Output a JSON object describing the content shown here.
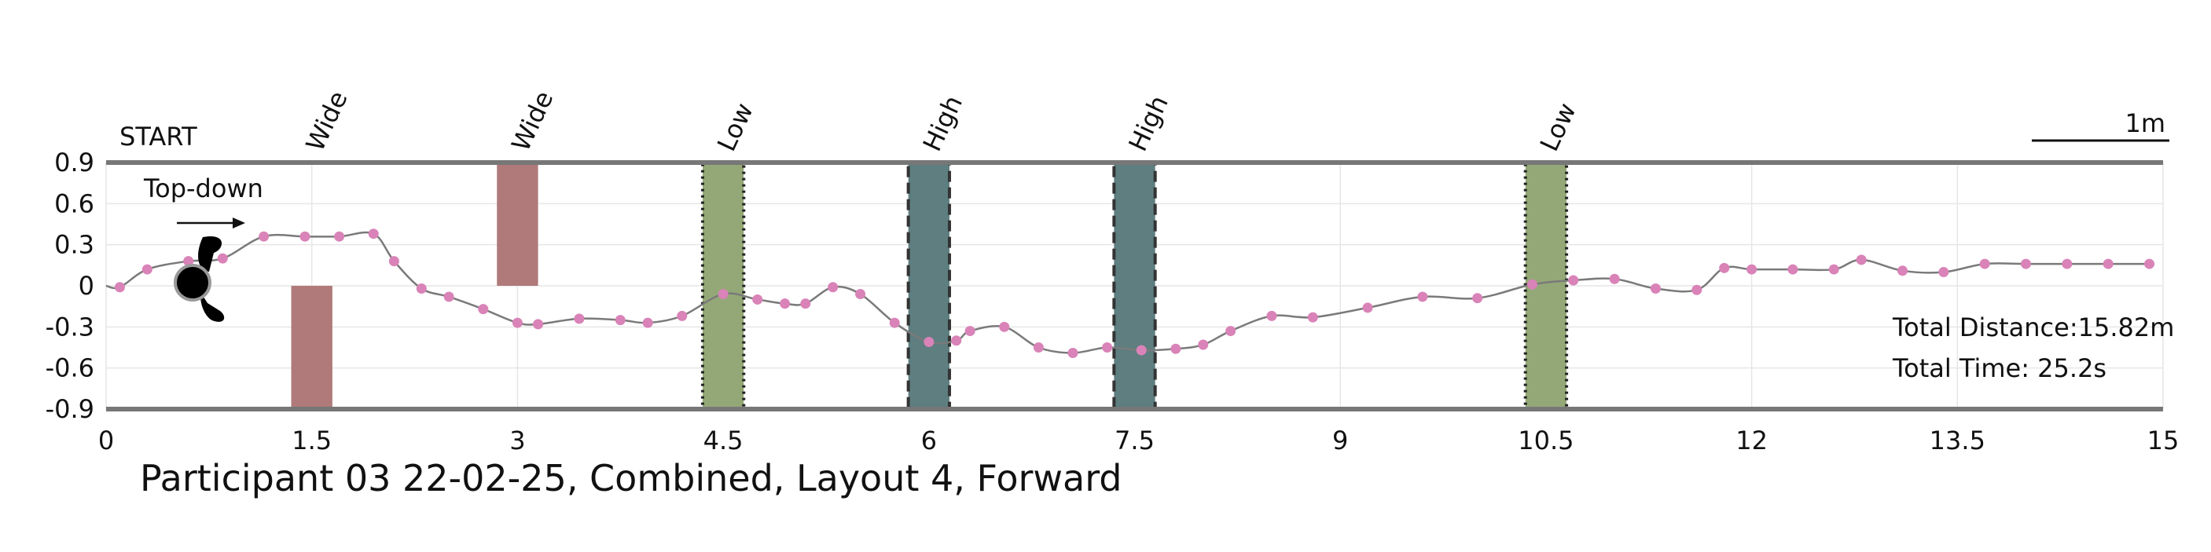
{
  "chart_data": {
    "type": "scatter",
    "title": "Participant 03 22-02-25, Combined, Layout 4, Forward",
    "start_label": "START",
    "topdown_label": "Top-down",
    "scale_label": "1m",
    "xlim": [
      0,
      15
    ],
    "ylim": [
      -0.9,
      0.9
    ],
    "x_ticks": [
      0,
      1.5,
      3,
      4.5,
      6,
      7.5,
      9,
      10.5,
      12,
      13.5,
      15
    ],
    "x_tick_labels": [
      "0",
      "1.5",
      "3",
      "4.5",
      "6",
      "7.5",
      "9",
      "10.5",
      "12",
      "13.5",
      "15"
    ],
    "y_ticks": [
      0.9,
      0.6,
      0.3,
      0,
      -0.3,
      -0.6,
      -0.9
    ],
    "y_tick_labels": [
      "0.9",
      "0.6",
      "0.3",
      "0",
      "-0.3",
      "-0.6",
      "-0.9"
    ],
    "grid": true,
    "stats": {
      "distance": "Total Distance:15.82m",
      "time": "Total Time: 25.2s"
    },
    "obstacles": [
      {
        "label": "Wide",
        "kind": "wide",
        "x0": 1.35,
        "x1": 1.65,
        "y0": -0.9,
        "y1": 0,
        "color": "#b07a7a"
      },
      {
        "label": "Wide",
        "kind": "wide",
        "x0": 2.85,
        "x1": 3.15,
        "y0": 0,
        "y1": 0.9,
        "color": "#b07a7a"
      },
      {
        "label": "Low",
        "kind": "low",
        "x0": 4.35,
        "x1": 4.65,
        "y0": -0.9,
        "y1": 0.9,
        "color": "#94a877"
      },
      {
        "label": "High",
        "kind": "high",
        "x0": 5.85,
        "x1": 6.15,
        "y0": -0.9,
        "y1": 0.9,
        "color": "#5e7e80"
      },
      {
        "label": "High",
        "kind": "high",
        "x0": 7.35,
        "x1": 7.65,
        "y0": -0.9,
        "y1": 0.9,
        "color": "#5e7e80"
      },
      {
        "label": "Low",
        "kind": "low",
        "x0": 10.35,
        "x1": 10.65,
        "y0": -0.9,
        "y1": 0.9,
        "color": "#94a877"
      }
    ],
    "path": {
      "x": [
        0,
        0.1,
        0.3,
        0.6,
        0.85,
        1.15,
        1.45,
        1.7,
        1.95,
        2.1,
        2.3,
        2.5,
        2.75,
        3.0,
        3.15,
        3.45,
        3.75,
        3.95,
        4.2,
        4.5,
        4.75,
        4.95,
        5.1,
        5.3,
        5.5,
        5.75,
        6.0,
        6.2,
        6.3,
        6.55,
        6.8,
        7.05,
        7.3,
        7.55,
        7.8,
        8.0,
        8.2,
        8.5,
        8.8,
        9.2,
        9.6,
        10.0,
        10.4,
        10.7,
        11.0,
        11.3,
        11.6,
        11.8,
        12.0,
        12.3,
        12.6,
        12.8,
        13.1,
        13.4,
        13.7,
        14.0,
        14.3,
        14.6,
        14.9
      ],
      "y": [
        0,
        -0.01,
        0.12,
        0.18,
        0.2,
        0.36,
        0.36,
        0.36,
        0.38,
        0.18,
        -0.02,
        -0.08,
        -0.17,
        -0.27,
        -0.28,
        -0.24,
        -0.25,
        -0.27,
        -0.22,
        -0.06,
        -0.1,
        -0.13,
        -0.13,
        -0.01,
        -0.06,
        -0.27,
        -0.41,
        -0.4,
        -0.33,
        -0.3,
        -0.45,
        -0.49,
        -0.45,
        -0.47,
        -0.46,
        -0.43,
        -0.33,
        -0.22,
        -0.23,
        -0.16,
        -0.08,
        -0.09,
        0.01,
        0.04,
        0.05,
        -0.02,
        -0.03,
        0.13,
        0.12,
        0.12,
        0.12,
        0.19,
        0.11,
        0.1,
        0.16,
        0.16,
        0.16,
        0.16,
        0.16
      ],
      "marker_indices": [
        1,
        2,
        3,
        4,
        5,
        6,
        7,
        8,
        9,
        10,
        11,
        12,
        13,
        14,
        15,
        16,
        17,
        18,
        19,
        20,
        21,
        22,
        23,
        24,
        25,
        26,
        27,
        28,
        29,
        30,
        31,
        32,
        33,
        34,
        35,
        36,
        37,
        38,
        39,
        40,
        41,
        42,
        43,
        44,
        45,
        46,
        47,
        48,
        49,
        50,
        51,
        52,
        53,
        54,
        55,
        56,
        57,
        58
      ]
    },
    "colors": {
      "line": "#7a7a7a",
      "marker": "#d983b8",
      "axis": "#777777",
      "text": "#111111"
    }
  }
}
